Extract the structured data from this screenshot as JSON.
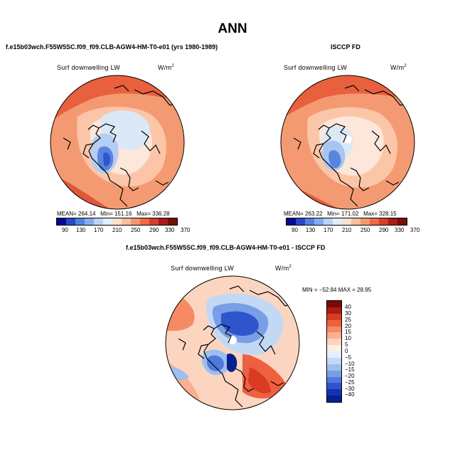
{
  "page_title": "ANN",
  "panels": [
    {
      "case_title": "f.e15b03wch.F55W5SC.f09_f09.CLB-AGW4-HM-T0-e01 (yrs 1980-1989)",
      "variable": "Surf downwelling LW",
      "units_base": "W/m",
      "units_exp": "2",
      "stats": {
        "mean_label": "MEAN=",
        "mean": "264.14",
        "min_label": "Min=",
        "min": "151.16",
        "max_label": "Max=",
        "max": "336.28"
      },
      "colorbar_ticks": [
        "90",
        "130",
        "170",
        "210",
        "250",
        "290",
        "330",
        "370"
      ]
    },
    {
      "case_title": "ISCCP FD",
      "variable": "Surf downwelling LW",
      "units_base": "W/m",
      "units_exp": "2",
      "stats": {
        "mean_label": "MEAN=",
        "mean": "263.22",
        "min_label": "Min=",
        "min": "171.02",
        "max_label": "Max=",
        "max": "328.15"
      },
      "colorbar_ticks": [
        "90",
        "130",
        "170",
        "210",
        "250",
        "290",
        "330",
        "370"
      ]
    }
  ],
  "diff_panel": {
    "case_title": "f.e15b03wch.F55W5SC.f09_f09.CLB-AGW4-HM-T0-e01 - ISCCP FD",
    "variable": "Surf downwelling LW",
    "units_base": "W/m",
    "units_exp": "2",
    "min_max_text": "MIN = −52.84  MAX =  28.95",
    "colorbar_labels": [
      "40",
      "30",
      "25",
      "20",
      "15",
      "10",
      "5",
      "0",
      "−5",
      "−10",
      "−15",
      "−20",
      "−25",
      "−30",
      "−40"
    ]
  },
  "colors": {
    "abs_scale": [
      "#08088e",
      "#2549c9",
      "#5480e0",
      "#86acee",
      "#b9d3f6",
      "#e2edfa",
      "#fde0d0",
      "#fbbe9f",
      "#f7976e",
      "#ee6a45",
      "#d6402a",
      "#aa1c16",
      "#741008"
    ],
    "diff_scale": [
      "#7a0a0a",
      "#b01a14",
      "#d93c23",
      "#ee6040",
      "#f58a63",
      "#f9b08f",
      "#fcd5c0",
      "#fdefe6",
      "#e4eefb",
      "#c2d8f5",
      "#9dbfef",
      "#789fe6",
      "#5079dc",
      "#2f55cd",
      "#1433b4",
      "#06208e"
    ]
  }
}
